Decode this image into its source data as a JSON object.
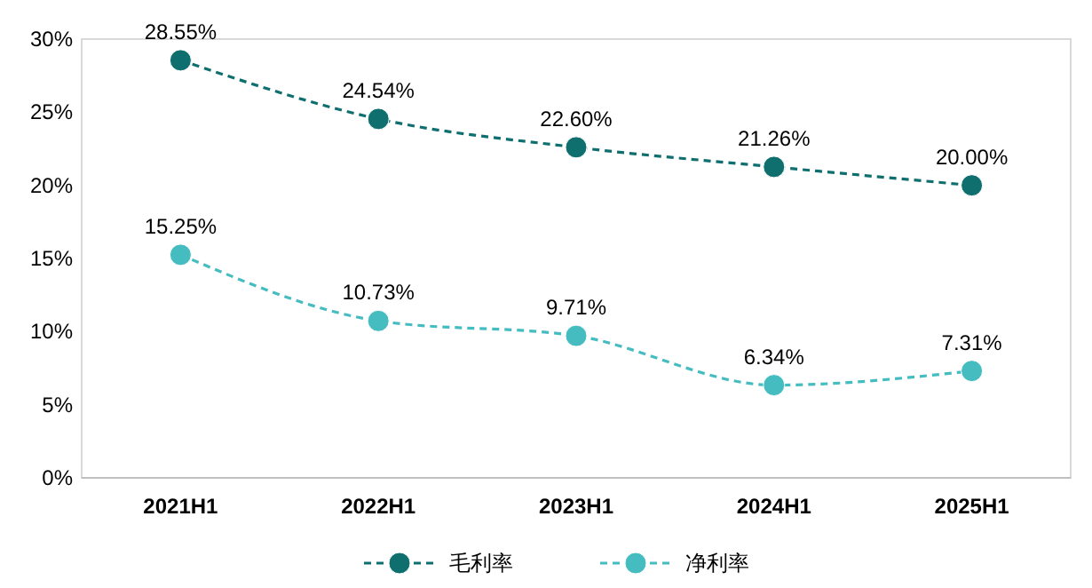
{
  "chart_data": {
    "type": "line",
    "categories": [
      "2021H1",
      "2022H1",
      "2023H1",
      "2024H1",
      "2025H1"
    ],
    "series": [
      {
        "name": "毛利率",
        "color": "#0f6e6e",
        "values": [
          28.55,
          24.54,
          22.6,
          21.26,
          20.0
        ],
        "value_labels": [
          "28.55%",
          "24.54%",
          "22.60%",
          "21.26%",
          "20.00%"
        ]
      },
      {
        "name": "净利率",
        "color": "#45bcc0",
        "values": [
          15.25,
          10.73,
          9.71,
          6.34,
          7.31
        ],
        "value_labels": [
          "15.25%",
          "10.73%",
          "9.71%",
          "6.34%",
          "7.31%"
        ]
      }
    ],
    "ylim": [
      0,
      30
    ],
    "yticks": [
      {
        "value": 0,
        "label": "0%"
      },
      {
        "value": 5,
        "label": "5%"
      },
      {
        "value": 10,
        "label": "10%"
      },
      {
        "value": 15,
        "label": "15%"
      },
      {
        "value": 20,
        "label": "20%"
      },
      {
        "value": 25,
        "label": "25%"
      },
      {
        "value": 30,
        "label": "30%"
      }
    ],
    "grid": false,
    "legend": "bottom",
    "marker": "circle",
    "line_style": "dashed"
  }
}
